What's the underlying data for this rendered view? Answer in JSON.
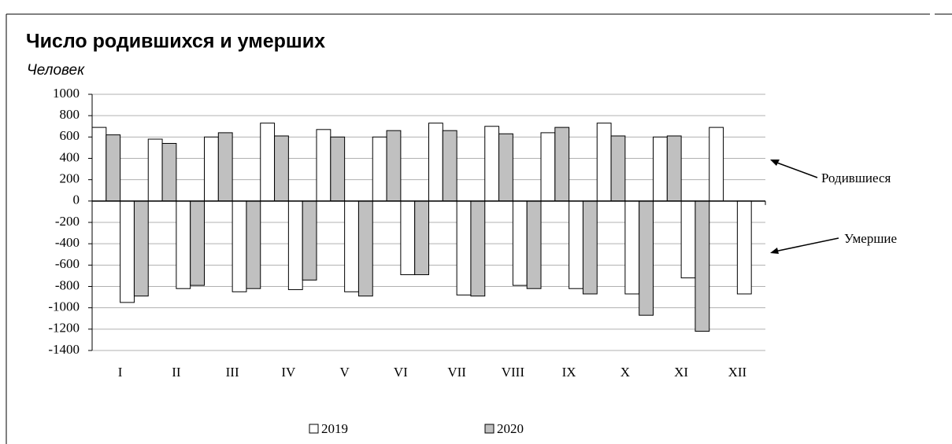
{
  "chart_data": {
    "type": "bar",
    "title": "Число родившихся и умерших",
    "subtitle": "Человек",
    "categories": [
      "I",
      "II",
      "III",
      "IV",
      "V",
      "VI",
      "VII",
      "VIII",
      "IX",
      "X",
      "XI",
      "XII"
    ],
    "series": [
      {
        "name": "2019",
        "color": "#ffffff",
        "births": [
          690,
          580,
          600,
          730,
          670,
          600,
          730,
          700,
          640,
          730,
          600,
          690
        ],
        "deaths": [
          -950,
          -820,
          -850,
          -830,
          -850,
          -690,
          -880,
          -790,
          -820,
          -870,
          -720,
          -870
        ]
      },
      {
        "name": "2020",
        "color": "#c0c0c0",
        "births": [
          620,
          540,
          640,
          610,
          600,
          660,
          660,
          630,
          690,
          610,
          610,
          null
        ],
        "deaths": [
          -890,
          -790,
          -820,
          -740,
          -890,
          -690,
          -890,
          -820,
          -870,
          -1070,
          -1220,
          null
        ]
      }
    ],
    "annotations": [
      "Родившиеся",
      "Умершие"
    ],
    "ylim": [
      -1400,
      1000
    ],
    "yticks": [
      -1400,
      -1200,
      -1000,
      -800,
      -600,
      -400,
      -200,
      0,
      200,
      400,
      600,
      800,
      1000
    ],
    "grid": true
  }
}
